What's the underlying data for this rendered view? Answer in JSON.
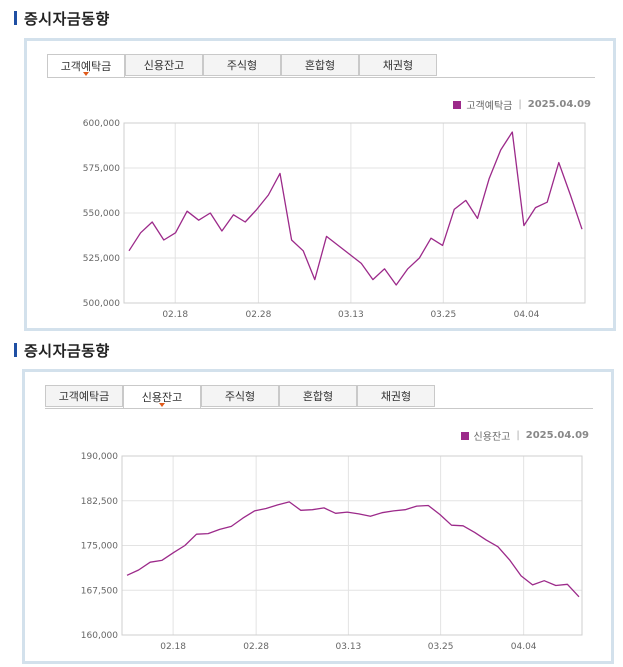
{
  "charts": [
    {
      "section_title": "증시자금동향",
      "tabs": [
        "고객예탁금",
        "신용잔고",
        "주식형",
        "혼합형",
        "채권형"
      ],
      "active_tab": 0,
      "legend": {
        "name": "고객예탁금",
        "separator": "|",
        "date": "2025.04.09"
      }
    },
    {
      "section_title": "증시자금동향",
      "tabs": [
        "고객예탁금",
        "신용잔고",
        "주식형",
        "혼합형",
        "채권형"
      ],
      "active_tab": 1,
      "legend": {
        "name": "신용잔고",
        "separator": "|",
        "date": "2025.04.09"
      }
    }
  ],
  "chart_data": [
    {
      "type": "line",
      "title": "증시자금동향",
      "series_name": "고객예탁금",
      "color": "#9c2a8a",
      "ylim": [
        500000,
        600000
      ],
      "yticks": [
        500000,
        525000,
        550000,
        575000,
        600000
      ],
      "ytick_labels": [
        "500,000",
        "525,000",
        "550,000",
        "575,000",
        "600,000"
      ],
      "xtick_labels": [
        "02.18",
        "02.28",
        "03.13",
        "03.25",
        "04.04"
      ],
      "xtick_index": [
        5,
        14,
        24,
        34,
        43
      ],
      "values": [
        529000,
        539000,
        545000,
        535000,
        539000,
        551000,
        546000,
        550000,
        540000,
        549000,
        545000,
        552000,
        560000,
        572000,
        535000,
        529000,
        513000,
        537000,
        532000,
        527000,
        522000,
        513000,
        519000,
        510000,
        519000,
        525000,
        536000,
        532000,
        552000,
        557000,
        547000,
        569000,
        585000,
        595000,
        543000,
        553000,
        556000,
        578000,
        560000,
        541000
      ]
    },
    {
      "type": "line",
      "title": "증시자금동향",
      "series_name": "신용잔고",
      "color": "#9c2a8a",
      "ylim": [
        160000,
        190000
      ],
      "yticks": [
        160000,
        167500,
        175000,
        182500,
        190000
      ],
      "ytick_labels": [
        "160,000",
        "167,500",
        "175,000",
        "182,500",
        "190,000"
      ],
      "xtick_labels": [
        "02.18",
        "02.28",
        "03.13",
        "03.25",
        "04.04"
      ],
      "xtick_index": [
        5,
        14,
        24,
        34,
        43
      ],
      "values": [
        170000,
        170900,
        172200,
        172500,
        173800,
        175000,
        176900,
        177000,
        177700,
        178200,
        179600,
        180800,
        181200,
        181800,
        182300,
        180900,
        181000,
        181300,
        180400,
        180600,
        180300,
        179900,
        180500,
        180800,
        181000,
        181600,
        181700,
        180200,
        178400,
        178300,
        177200,
        175900,
        174800,
        172600,
        169900,
        168400,
        169100,
        168300,
        168500,
        166400
      ]
    }
  ]
}
